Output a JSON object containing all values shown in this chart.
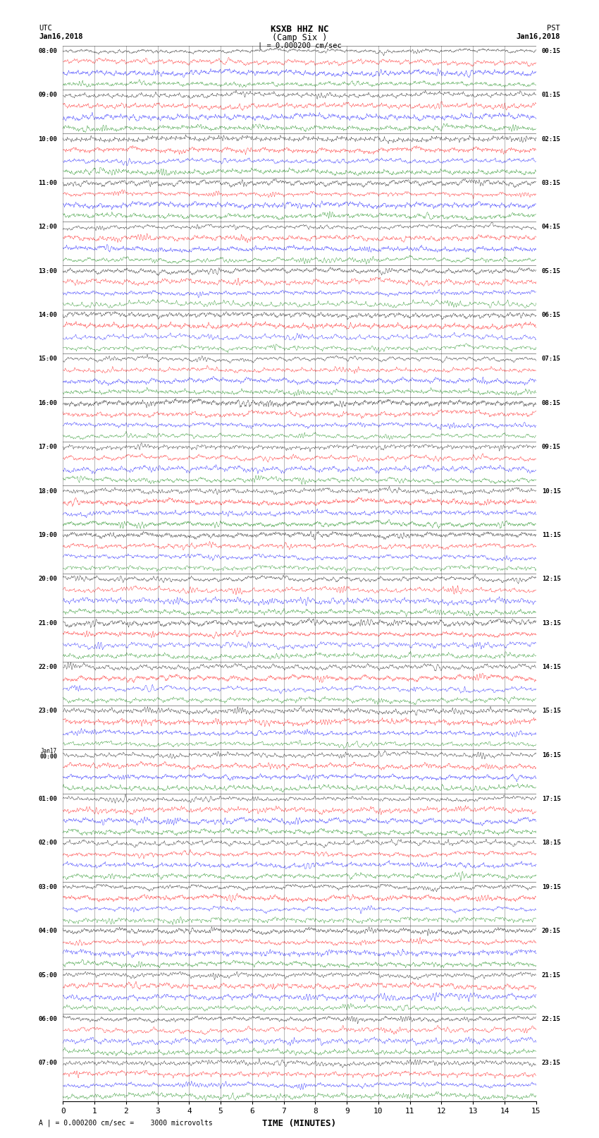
{
  "title_line1": "KSXB HHZ NC",
  "title_line2": "(Camp Six )",
  "scale_label": "| = 0.000200 cm/sec",
  "left_header": "UTC",
  "left_date": "Jan16,2018",
  "right_header": "PST",
  "right_date": "Jan16,2018",
  "footer_note": "A | = 0.000200 cm/sec =    3000 microvolts",
  "xlabel": "TIME (MINUTES)",
  "xticks": [
    0,
    1,
    2,
    3,
    4,
    5,
    6,
    7,
    8,
    9,
    10,
    11,
    12,
    13,
    14,
    15
  ],
  "utc_times_left": [
    "08:00",
    "",
    "",
    "",
    "09:00",
    "",
    "",
    "",
    "10:00",
    "",
    "",
    "",
    "11:00",
    "",
    "",
    "",
    "12:00",
    "",
    "",
    "",
    "13:00",
    "",
    "",
    "",
    "14:00",
    "",
    "",
    "",
    "15:00",
    "",
    "",
    "",
    "16:00",
    "",
    "",
    "",
    "17:00",
    "",
    "",
    "",
    "18:00",
    "",
    "",
    "",
    "19:00",
    "",
    "",
    "",
    "20:00",
    "",
    "",
    "",
    "21:00",
    "",
    "",
    "",
    "22:00",
    "",
    "",
    "",
    "23:00",
    "",
    "",
    "",
    "Jan17\n00:00",
    "",
    "",
    "",
    "01:00",
    "",
    "",
    "",
    "02:00",
    "",
    "",
    "",
    "03:00",
    "",
    "",
    "",
    "04:00",
    "",
    "",
    "",
    "05:00",
    "",
    "",
    "",
    "06:00",
    "",
    "",
    "",
    "07:00",
    "",
    "",
    ""
  ],
  "pst_times_right": [
    "00:15",
    "",
    "",
    "",
    "01:15",
    "",
    "",
    "",
    "02:15",
    "",
    "",
    "",
    "03:15",
    "",
    "",
    "",
    "04:15",
    "",
    "",
    "",
    "05:15",
    "",
    "",
    "",
    "06:15",
    "",
    "",
    "",
    "07:15",
    "",
    "",
    "",
    "08:15",
    "",
    "",
    "",
    "09:15",
    "",
    "",
    "",
    "10:15",
    "",
    "",
    "",
    "11:15",
    "",
    "",
    "",
    "12:15",
    "",
    "",
    "",
    "13:15",
    "",
    "",
    "",
    "14:15",
    "",
    "",
    "",
    "15:15",
    "",
    "",
    "",
    "16:15",
    "",
    "",
    "",
    "17:15",
    "",
    "",
    "",
    "18:15",
    "",
    "",
    "",
    "19:15",
    "",
    "",
    "",
    "20:15",
    "",
    "",
    "",
    "21:15",
    "",
    "",
    "",
    "22:15",
    "",
    "",
    "",
    "23:15",
    "",
    "",
    ""
  ],
  "n_rows": 96,
  "minutes_per_row": 15,
  "colors_cycle": [
    "black",
    "red",
    "blue",
    "green"
  ],
  "background_color": "white",
  "trace_amplitude": 0.42,
  "noise_seed": 42
}
